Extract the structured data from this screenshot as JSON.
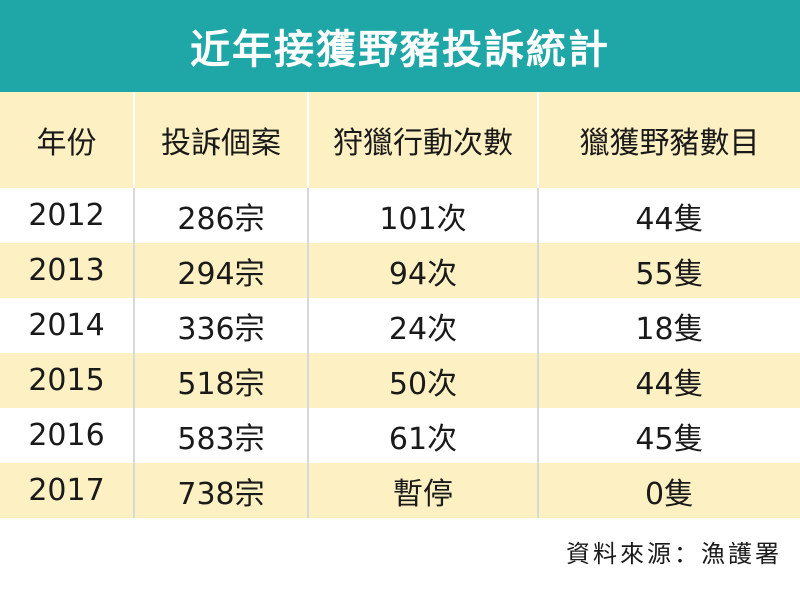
{
  "title": "近年接獲野豬投訴統計",
  "source": "資料來源：漁護署",
  "colors": {
    "title_bar": "#1fa6a6",
    "header_bg": "#fdf0c2",
    "stripe_bg": "#fdf0c2"
  },
  "table": {
    "headers": [
      "年份",
      "投訴個案",
      "狩獵行動次數",
      "獵獲野豬數目"
    ],
    "rows": [
      [
        "2012",
        "286宗",
        "101次",
        "44隻"
      ],
      [
        "2013",
        "294宗",
        "94次",
        "55隻"
      ],
      [
        "2014",
        "336宗",
        "24次",
        "18隻"
      ],
      [
        "2015",
        "518宗",
        "50次",
        "44隻"
      ],
      [
        "2016",
        "583宗",
        "61次",
        "45隻"
      ],
      [
        "2017",
        "738宗",
        "暫停",
        "0隻"
      ]
    ]
  },
  "chart_data": {
    "type": "table",
    "title": "近年接獲野豬投訴統計",
    "columns": [
      "年份",
      "投訴個案",
      "狩獵行動次數",
      "獵獲野豬數目"
    ],
    "rows": [
      [
        "2012",
        "286宗",
        "101次",
        "44隻"
      ],
      [
        "2013",
        "294宗",
        "94次",
        "55隻"
      ],
      [
        "2014",
        "336宗",
        "24次",
        "18隻"
      ],
      [
        "2015",
        "518宗",
        "50次",
        "44隻"
      ],
      [
        "2016",
        "583宗",
        "61次",
        "45隻"
      ],
      [
        "2017",
        "738宗",
        "暫停",
        "0隻"
      ]
    ]
  }
}
